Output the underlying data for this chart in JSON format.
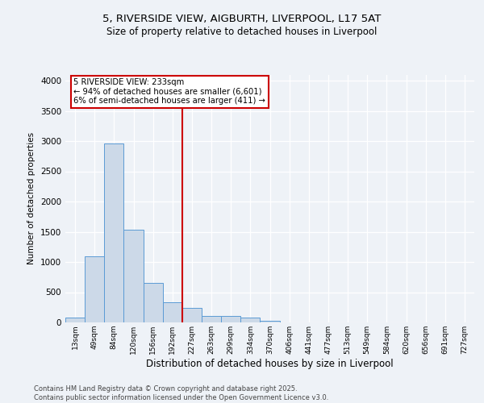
{
  "title_line1": "5, RIVERSIDE VIEW, AIGBURTH, LIVERPOOL, L17 5AT",
  "title_line2": "Size of property relative to detached houses in Liverpool",
  "xlabel": "Distribution of detached houses by size in Liverpool",
  "ylabel": "Number of detached properties",
  "bar_labels": [
    "13sqm",
    "49sqm",
    "84sqm",
    "120sqm",
    "156sqm",
    "192sqm",
    "227sqm",
    "263sqm",
    "299sqm",
    "334sqm",
    "370sqm",
    "406sqm",
    "441sqm",
    "477sqm",
    "513sqm",
    "549sqm",
    "584sqm",
    "620sqm",
    "656sqm",
    "691sqm",
    "727sqm"
  ],
  "bar_values": [
    75,
    1100,
    2960,
    1540,
    650,
    340,
    235,
    110,
    110,
    80,
    30,
    5,
    5,
    2,
    2,
    1,
    1,
    0,
    0,
    0,
    0
  ],
  "bar_color": "#ccd9e8",
  "bar_edgecolor": "#5b9bd5",
  "vline_bin_index": 6,
  "vline_color": "#cc0000",
  "annotation_text": "5 RIVERSIDE VIEW: 233sqm\n← 94% of detached houses are smaller (6,601)\n6% of semi-detached houses are larger (411) →",
  "annotation_box_color": "#cc0000",
  "ylim": [
    0,
    4100
  ],
  "yticks": [
    0,
    500,
    1000,
    1500,
    2000,
    2500,
    3000,
    3500,
    4000
  ],
  "footnote": "Contains HM Land Registry data © Crown copyright and database right 2025.\nContains public sector information licensed under the Open Government Licence v3.0.",
  "bg_color": "#eef2f7",
  "plot_bg_color": "#eef2f7",
  "grid_color": "#ffffff"
}
